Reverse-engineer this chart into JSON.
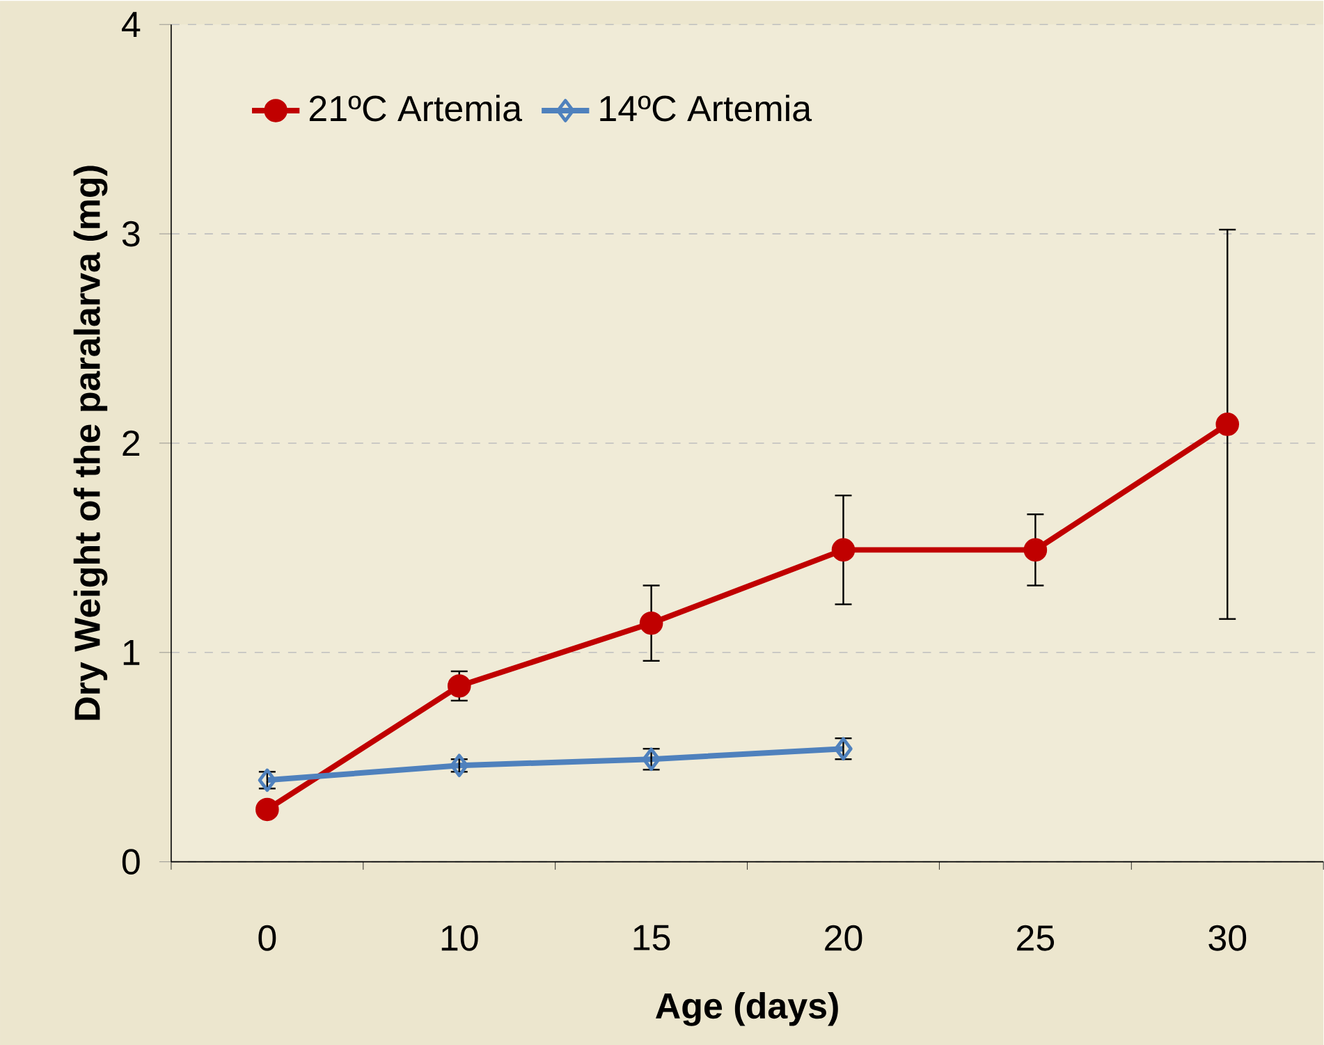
{
  "chart_data": {
    "type": "line",
    "xlabel": "Age (days)",
    "ylabel": "Dry Weight of the paralarva (mg)",
    "categories": [
      "0",
      "10",
      "15",
      "20",
      "25",
      "30"
    ],
    "series": [
      {
        "name": "21ºC Artemia",
        "color": "#c00000",
        "marker": "circle",
        "values": [
          0.25,
          0.84,
          1.14,
          1.49,
          1.49,
          2.09
        ],
        "errors": [
          null,
          0.07,
          0.18,
          0.26,
          0.17,
          0.93
        ]
      },
      {
        "name": "14ºC Artemia",
        "color": "#4f81bd",
        "marker": "diamond",
        "values": [
          0.39,
          0.46,
          0.49,
          0.54,
          null,
          null
        ],
        "errors": [
          0.04,
          0.03,
          0.05,
          0.05,
          null,
          null
        ]
      }
    ],
    "ylim": [
      0,
      4
    ],
    "yticks": [
      0,
      1,
      2,
      3,
      4
    ],
    "grid": "y",
    "legend": "top left",
    "line_style": "solid"
  }
}
